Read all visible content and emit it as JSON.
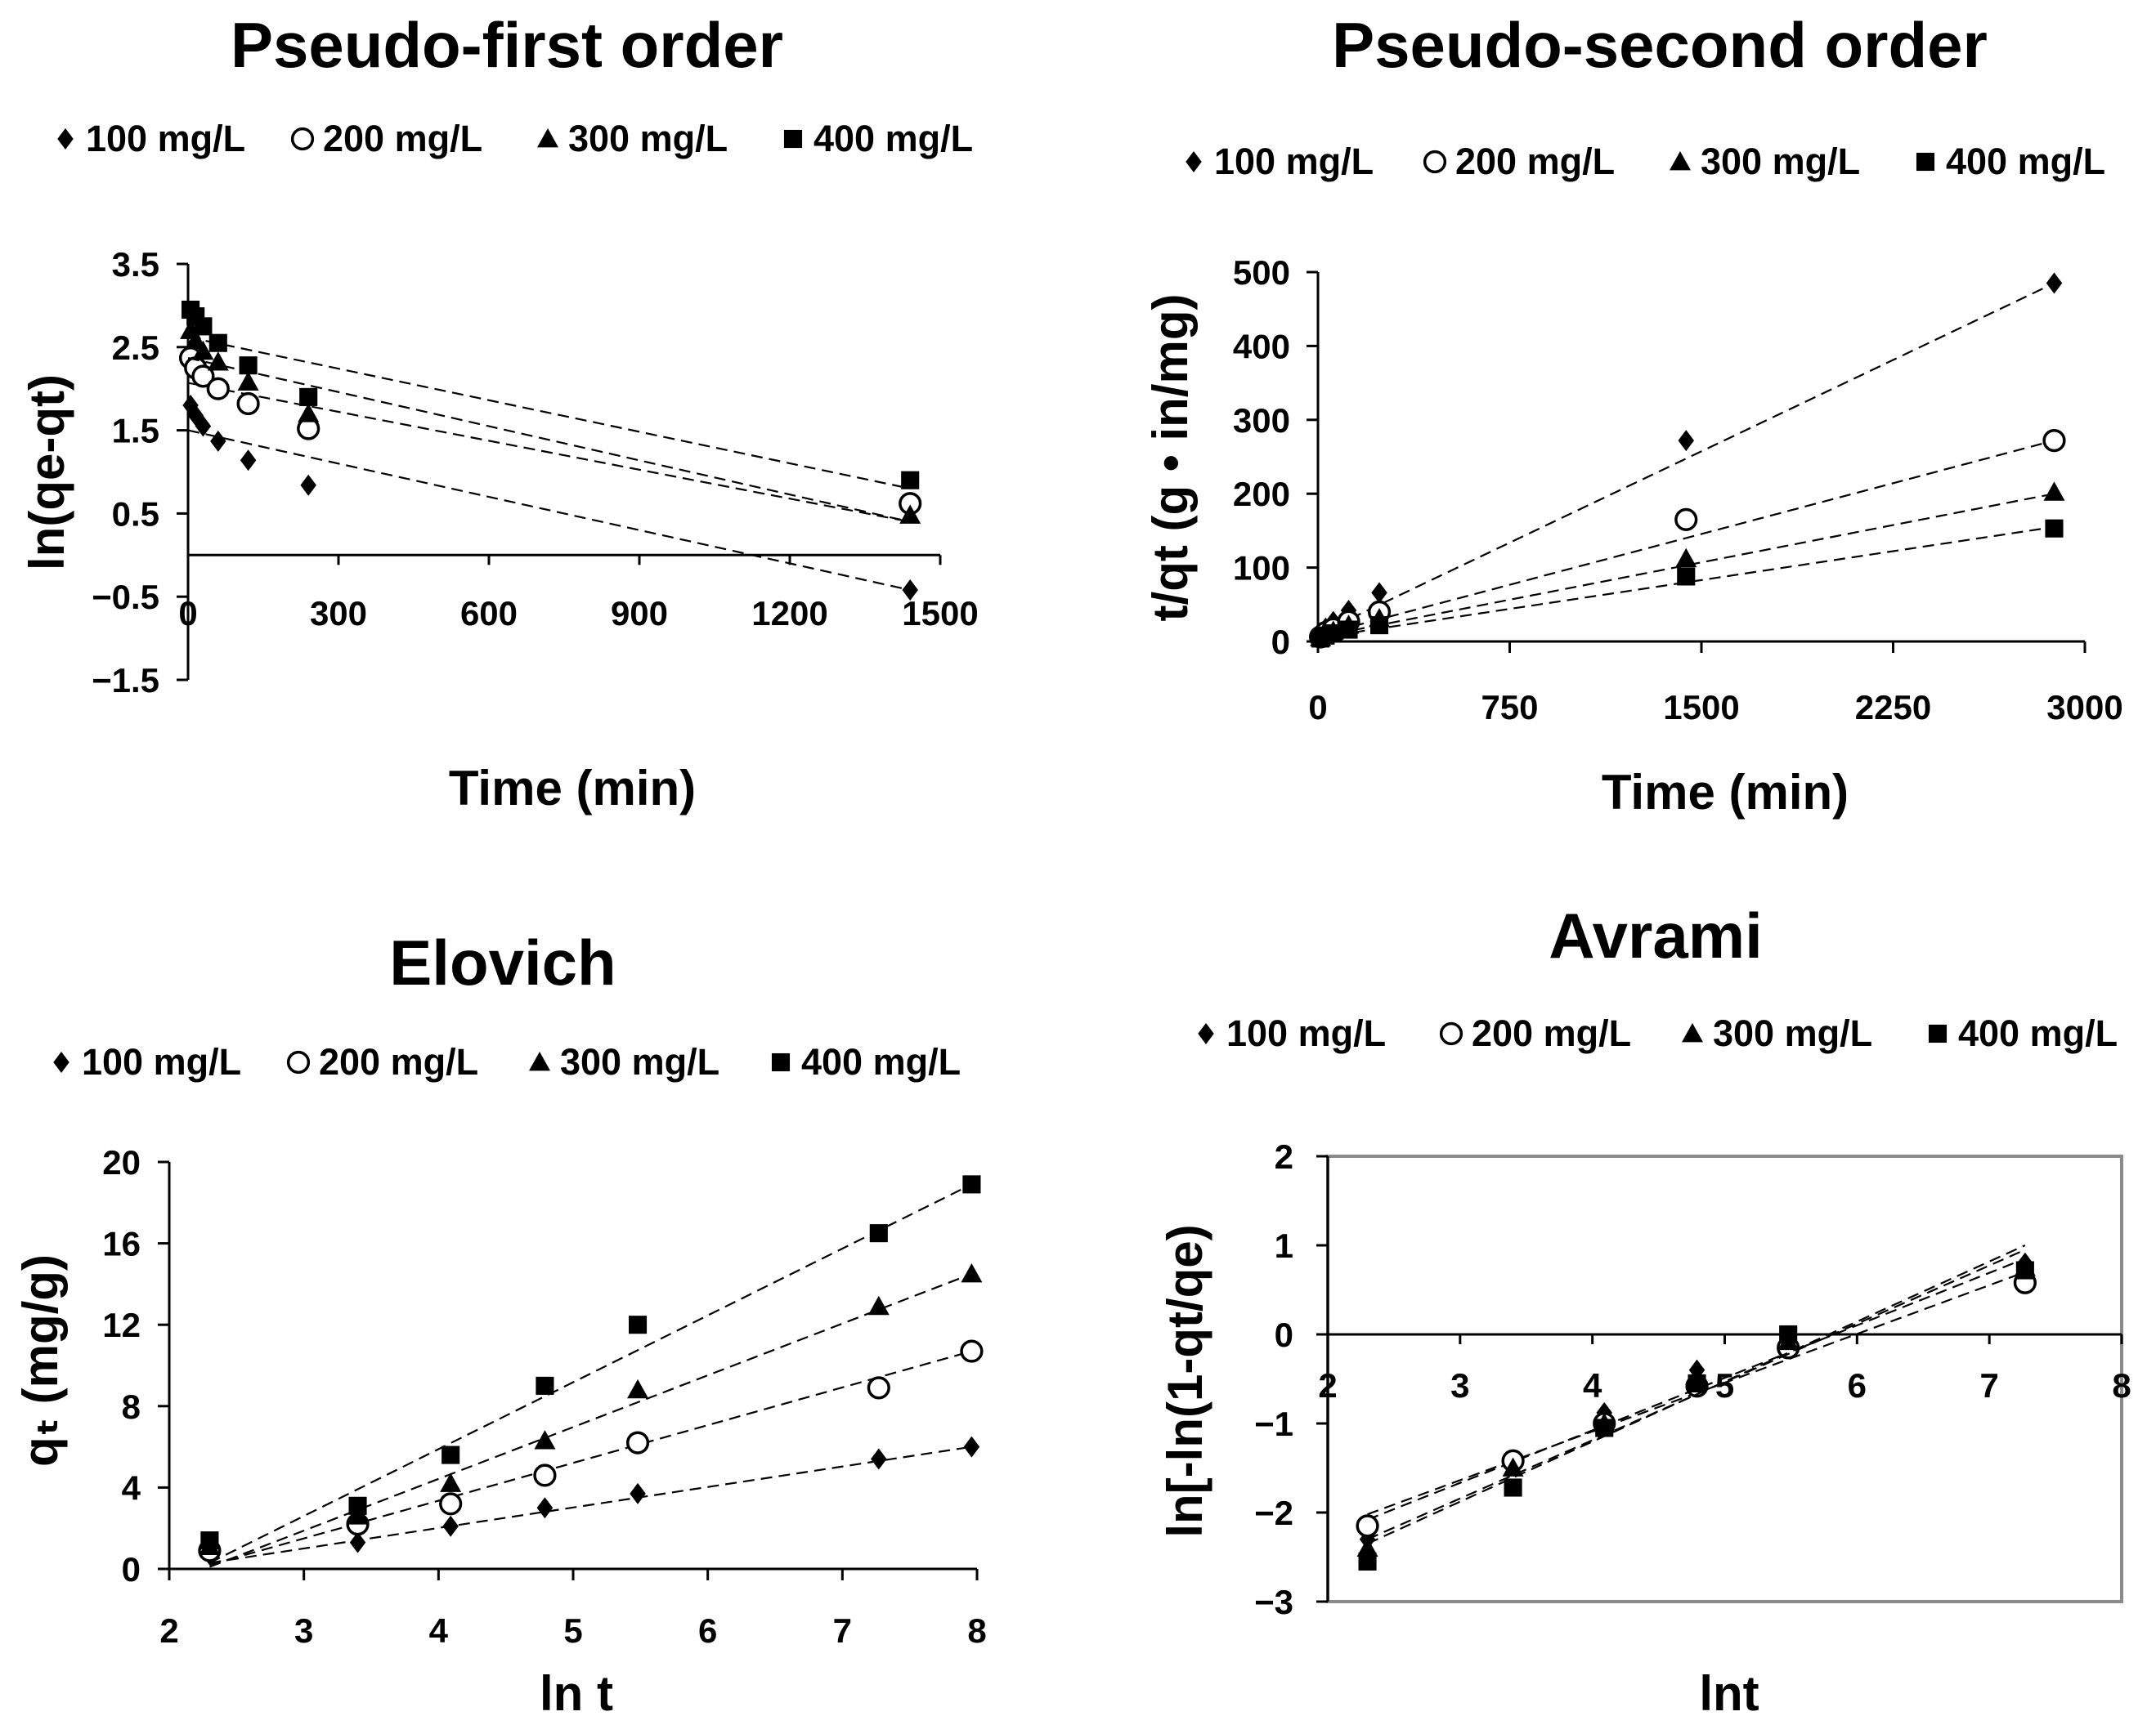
{
  "chart_data": [
    {
      "id": "pfo",
      "type": "scatter",
      "title": "Pseudo-first order",
      "xlabel": "Time (min)",
      "ylabel": "ln(qe-qt)",
      "xlim": [
        0,
        1500
      ],
      "ylim": [
        -1.5,
        3.5
      ],
      "xticks": [
        0,
        300,
        600,
        900,
        1200,
        1500
      ],
      "yticks": [
        3.5,
        2.5,
        1.5,
        0.5,
        -0.5,
        -1.5
      ],
      "xtick_labels": [
        "0",
        "300",
        "600",
        "900",
        "1200",
        "1500"
      ],
      "ytick_labels": [
        "3.5",
        "2.5",
        "1.5",
        "0.5",
        "−0.5",
        "−1.5"
      ],
      "grid": false,
      "frame": false,
      "legend_position": "top",
      "series": [
        {
          "name": "100 mg/L",
          "marker": "diamond",
          "x": [
            5,
            15,
            30,
            60,
            120,
            240,
            1440
          ],
          "y": [
            1.8,
            1.68,
            1.55,
            1.37,
            1.14,
            0.84,
            -0.42
          ],
          "fit": [
            [
              0,
              1.5
            ],
            [
              1440,
              -0.42
            ]
          ]
        },
        {
          "name": "200 mg/L",
          "marker": "circle",
          "x": [
            5,
            15,
            30,
            60,
            120,
            240,
            1440
          ],
          "y": [
            2.37,
            2.25,
            2.15,
            2.0,
            1.82,
            1.52,
            0.62
          ],
          "fit": [
            [
              0,
              2.07
            ],
            [
              1440,
              0.4
            ]
          ]
        },
        {
          "name": "300 mg/L",
          "marker": "triangle",
          "x": [
            5,
            15,
            30,
            60,
            120,
            240,
            1440
          ],
          "y": [
            2.7,
            2.58,
            2.45,
            2.32,
            2.08,
            1.7,
            0.48
          ],
          "fit": [
            [
              0,
              2.37
            ],
            [
              1440,
              0.4
            ]
          ]
        },
        {
          "name": "400 mg/L",
          "marker": "square",
          "x": [
            5,
            15,
            30,
            60,
            120,
            240,
            1440
          ],
          "y": [
            2.95,
            2.87,
            2.75,
            2.55,
            2.28,
            1.9,
            0.9
          ],
          "fit": [
            [
              0,
              2.62
            ],
            [
              1440,
              0.8
            ]
          ]
        }
      ]
    },
    {
      "id": "pso",
      "type": "scatter",
      "title": "Pseudo-second order",
      "xlabel": "Time (min)",
      "ylabel": "t/qt (g • in/mg)",
      "xlim": [
        0,
        3000
      ],
      "ylim": [
        0,
        500
      ],
      "xticks": [
        0,
        750,
        1500,
        2250,
        3000
      ],
      "yticks": [
        0,
        100,
        200,
        300,
        400,
        500
      ],
      "xtick_labels": [
        "0",
        "750",
        "1500",
        "2250",
        "3000"
      ],
      "ytick_labels": [
        "0",
        "100",
        "200",
        "300",
        "400",
        "500"
      ],
      "grid": false,
      "frame": false,
      "legend_position": "top",
      "series": [
        {
          "name": "100 mg/L",
          "marker": "diamond",
          "x": [
            10,
            30,
            60,
            120,
            240,
            1440,
            2880
          ],
          "y": [
            9,
            18,
            27,
            42,
            66,
            272,
            485
          ],
          "fit": [
            [
              0,
              10
            ],
            [
              2880,
              485
            ]
          ]
        },
        {
          "name": "200 mg/L",
          "marker": "circle",
          "x": [
            10,
            30,
            60,
            120,
            240,
            1440,
            2880
          ],
          "y": [
            6,
            12,
            17,
            27,
            40,
            165,
            272
          ],
          "fit": [
            [
              0,
              8
            ],
            [
              2880,
              272
            ]
          ]
        },
        {
          "name": "300 mg/L",
          "marker": "triangle",
          "x": [
            10,
            30,
            60,
            120,
            240,
            1440,
            2880
          ],
          "y": [
            5,
            10,
            14,
            22,
            31,
            112,
            202
          ],
          "fit": [
            [
              0,
              6
            ],
            [
              2880,
              200
            ]
          ]
        },
        {
          "name": "400 mg/L",
          "marker": "square",
          "x": [
            10,
            30,
            60,
            120,
            240,
            1440,
            2880
          ],
          "y": [
            4,
            8,
            11,
            16,
            22,
            88,
            153
          ],
          "fit": [
            [
              0,
              5
            ],
            [
              2880,
              155
            ]
          ]
        }
      ]
    },
    {
      "id": "elovich",
      "type": "scatter",
      "title": "Elovich",
      "xlabel": "ln t",
      "ylabel": "qₜ (mg/g)",
      "xlim": [
        2,
        8
      ],
      "ylim": [
        0,
        20
      ],
      "xticks": [
        2,
        3,
        4,
        5,
        6,
        7,
        8
      ],
      "yticks": [
        0,
        4,
        8,
        12,
        16,
        20
      ],
      "xtick_labels": [
        "2",
        "3",
        "4",
        "5",
        "6",
        "7",
        "8"
      ],
      "ytick_labels": [
        "0",
        "4",
        "8",
        "12",
        "16",
        "20"
      ],
      "grid": false,
      "frame": false,
      "legend_position": "top",
      "series": [
        {
          "name": "100 mg/L",
          "marker": "diamond",
          "x": [
            2.3,
            3.4,
            4.09,
            4.79,
            5.48,
            7.27,
            7.96
          ],
          "y": [
            0.7,
            1.3,
            2.1,
            3.0,
            3.7,
            5.4,
            6.0
          ],
          "fit": [
            [
              2.3,
              0.3
            ],
            [
              7.96,
              6.0
            ]
          ]
        },
        {
          "name": "200 mg/L",
          "marker": "circle",
          "x": [
            2.3,
            3.4,
            4.09,
            4.79,
            5.48,
            7.27,
            7.96
          ],
          "y": [
            0.9,
            2.2,
            3.2,
            4.6,
            6.2,
            8.9,
            10.7
          ],
          "fit": [
            [
              2.3,
              0.2
            ],
            [
              7.96,
              10.7
            ]
          ]
        },
        {
          "name": "300 mg/L",
          "marker": "triangle",
          "x": [
            2.3,
            3.4,
            4.09,
            4.79,
            5.48,
            7.27,
            7.96
          ],
          "y": [
            1.1,
            2.6,
            4.2,
            6.3,
            8.8,
            12.9,
            14.5
          ],
          "fit": [
            [
              2.3,
              0.1
            ],
            [
              7.96,
              14.5
            ]
          ]
        },
        {
          "name": "400 mg/L",
          "marker": "square",
          "x": [
            2.3,
            3.4,
            4.09,
            4.79,
            5.48,
            7.27,
            7.96
          ],
          "y": [
            1.4,
            3.1,
            5.6,
            9.0,
            12.0,
            16.5,
            18.9
          ],
          "fit": [
            [
              2.3,
              0.3
            ],
            [
              7.96,
              18.9
            ]
          ]
        }
      ]
    },
    {
      "id": "avrami",
      "type": "scatter",
      "title": "Avrami",
      "xlabel": "lnt",
      "ylabel": "ln[-ln(1-qt/qe)",
      "xlim": [
        2,
        8
      ],
      "ylim": [
        -3,
        2
      ],
      "xticks": [
        2,
        3,
        4,
        5,
        6,
        7,
        8
      ],
      "yticks": [
        -3,
        -2,
        -1,
        0,
        1,
        2
      ],
      "xtick_labels": [
        "2",
        "3",
        "4",
        "5",
        "6",
        "7",
        "8"
      ],
      "ytick_labels": [
        "−3",
        "−2",
        "−1",
        "0",
        "1",
        "2"
      ],
      "grid": false,
      "frame": true,
      "legend_position": "top",
      "series": [
        {
          "name": "100 mg/L",
          "marker": "diamond",
          "x": [
            2.3,
            3.4,
            4.09,
            4.79,
            5.48,
            7.27
          ],
          "y": [
            -2.3,
            -1.45,
            -0.88,
            -0.4,
            -0.05,
            0.8
          ],
          "fit": [
            [
              2.3,
              -2.08
            ],
            [
              7.27,
              0.85
            ]
          ]
        },
        {
          "name": "200 mg/L",
          "marker": "circle",
          "x": [
            2.3,
            3.4,
            4.09,
            4.79,
            5.48,
            7.27
          ],
          "y": [
            -2.15,
            -1.42,
            -1.0,
            -0.58,
            -0.15,
            0.58
          ],
          "fit": [
            [
              2.3,
              -2.02
            ],
            [
              7.27,
              0.7
            ]
          ]
        },
        {
          "name": "300 mg/L",
          "marker": "triangle",
          "x": [
            2.3,
            3.4,
            4.09,
            4.79,
            5.48,
            7.27
          ],
          "y": [
            -2.4,
            -1.5,
            -1.0,
            -0.52,
            -0.08,
            0.75
          ],
          "fit": [
            [
              2.3,
              -2.3
            ],
            [
              7.27,
              0.95
            ]
          ]
        },
        {
          "name": "400 mg/L",
          "marker": "square",
          "x": [
            2.3,
            3.4,
            4.09,
            4.79,
            5.48,
            7.27
          ],
          "y": [
            -2.55,
            -1.72,
            -1.05,
            -0.55,
            0.0,
            0.72
          ],
          "fit": [
            [
              2.3,
              -2.35
            ],
            [
              7.27,
              1.0
            ]
          ]
        }
      ]
    }
  ]
}
